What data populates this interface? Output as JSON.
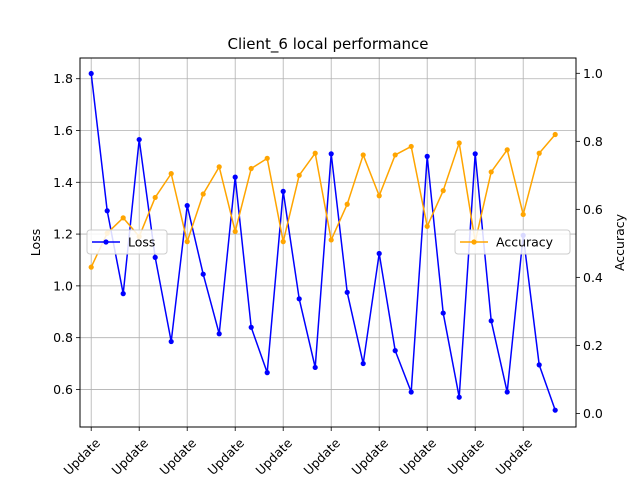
{
  "colors": {
    "loss": "#0000ff",
    "accuracy": "#ffa500",
    "grid": "#b0b0b0",
    "axis": "#000000",
    "legend_border": "#cccccc"
  },
  "chart_data": {
    "type": "line",
    "title": "Client_6 local performance",
    "ylabel": "Loss",
    "y2label": "Accuracy",
    "xlabel": "",
    "x_tick_labels": [
      "Update",
      "Update",
      "Update",
      "Update",
      "Update",
      "Update",
      "Update",
      "Update",
      "Update",
      "Update"
    ],
    "x": [
      1,
      2,
      3,
      4,
      5,
      6,
      7,
      8,
      9,
      10,
      11,
      12,
      13,
      14,
      15,
      16,
      17,
      18,
      19,
      20,
      21,
      22,
      23,
      24,
      25,
      26,
      27,
      28,
      29,
      30
    ],
    "x_tick_positions": [
      1,
      4,
      7,
      10,
      13,
      16,
      19,
      22,
      25,
      28
    ],
    "xlim": [
      0.3,
      31.3
    ],
    "ylim": [
      0.455,
      1.88
    ],
    "y_ticks": [
      0.6,
      0.8,
      1.0,
      1.2,
      1.4,
      1.6,
      1.8
    ],
    "y_tick_labels": [
      "0.6",
      "0.8",
      "1.0",
      "1.2",
      "1.4",
      "1.6",
      "1.8"
    ],
    "y2lim": [
      -0.04,
      1.045
    ],
    "y2_ticks": [
      0.0,
      0.2,
      0.4,
      0.6,
      0.8,
      1.0
    ],
    "y2_tick_labels": [
      "0.0",
      "0.2",
      "0.4",
      "0.6",
      "0.8",
      "1.0"
    ],
    "grid": true,
    "series": [
      {
        "name": "Loss",
        "axis": "left",
        "values": [
          1.82,
          1.29,
          0.97,
          1.565,
          1.11,
          0.785,
          1.31,
          1.045,
          0.815,
          1.42,
          0.84,
          0.665,
          1.365,
          0.95,
          0.685,
          1.51,
          0.975,
          0.7,
          1.125,
          0.75,
          0.59,
          1.5,
          0.895,
          0.57,
          1.51,
          0.865,
          0.59,
          1.195,
          0.695,
          0.52
        ]
      },
      {
        "name": "Accuracy",
        "axis": "right",
        "values": [
          0.43,
          0.53,
          0.575,
          0.52,
          0.635,
          0.705,
          0.505,
          0.645,
          0.725,
          0.535,
          0.72,
          0.75,
          0.505,
          0.7,
          0.765,
          0.51,
          0.615,
          0.76,
          0.64,
          0.76,
          0.785,
          0.55,
          0.655,
          0.795,
          0.505,
          0.71,
          0.775,
          0.585,
          0.765,
          0.82
        ]
      }
    ],
    "legends": [
      {
        "series": "Loss",
        "placement": "center-left"
      },
      {
        "series": "Accuracy",
        "placement": "center-right"
      }
    ]
  }
}
